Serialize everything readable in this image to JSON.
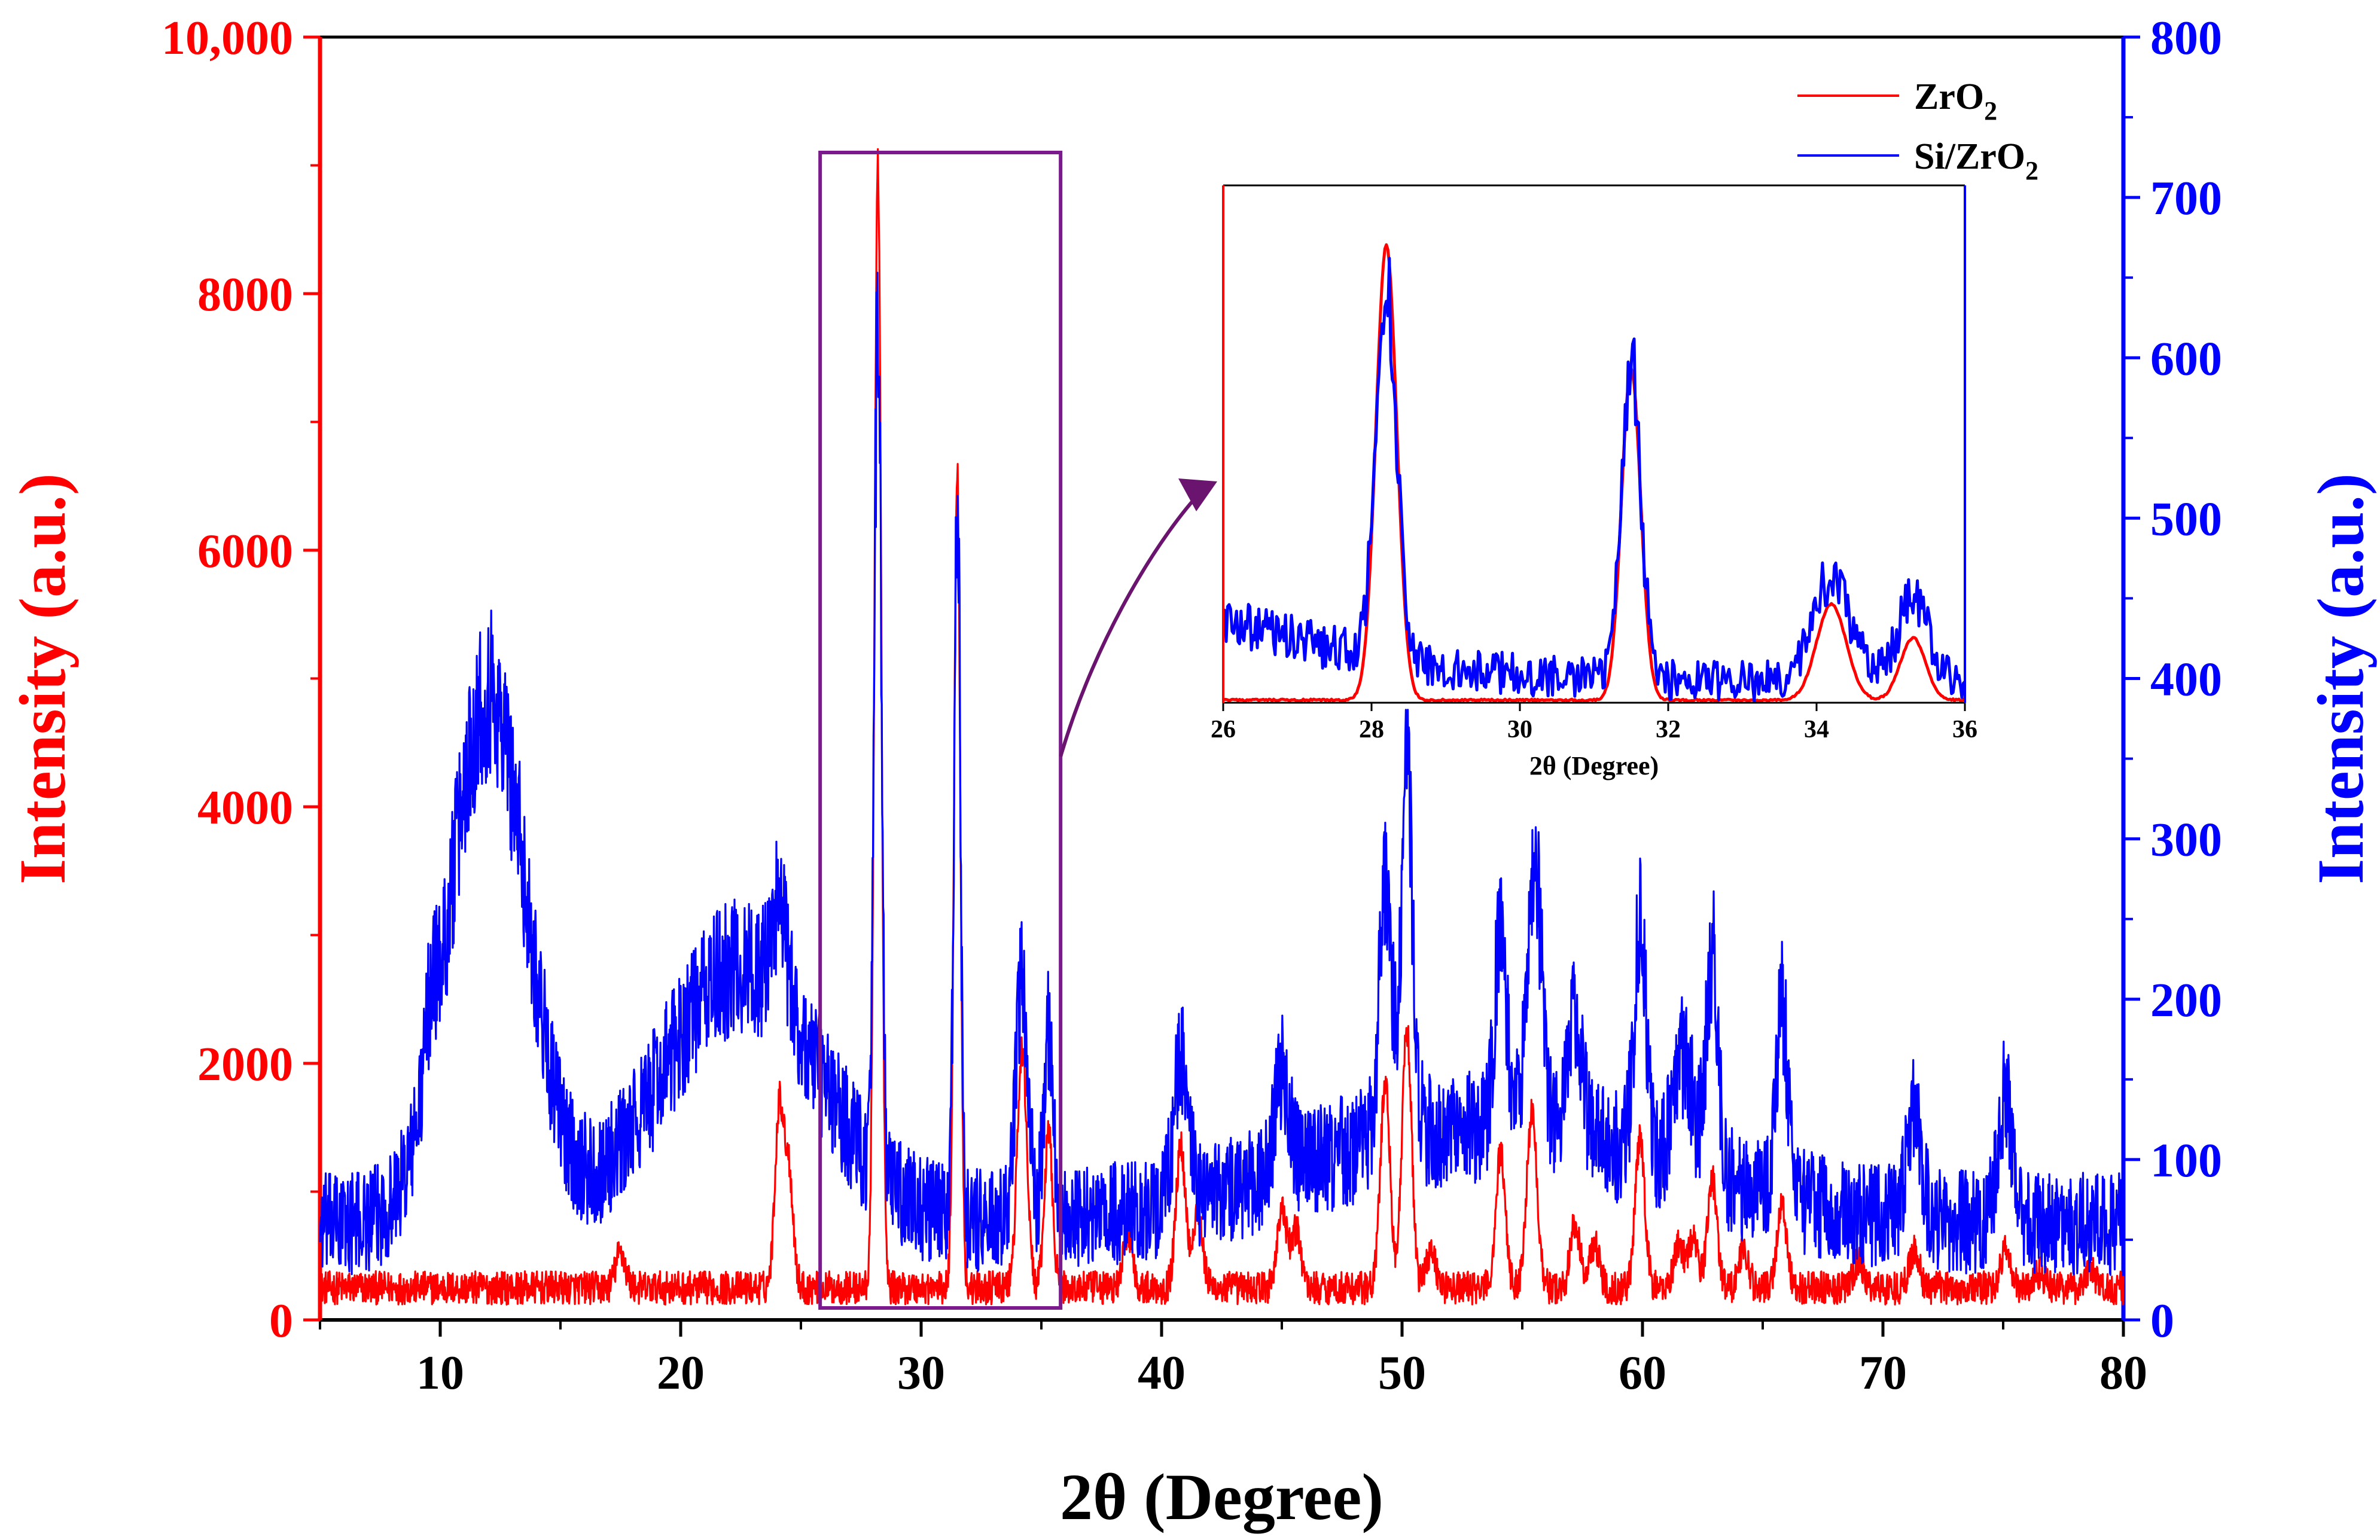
{
  "chart_data": {
    "type": "line",
    "title": "",
    "xlabel": "2θ (Degree)",
    "ylabel_left": "Intensity (a.u.)",
    "ylabel_right": "Intensity (a.u.)",
    "xlim": [
      5,
      80
    ],
    "ylim_left": [
      0,
      10000
    ],
    "ylim_right": [
      0,
      800
    ],
    "x_ticks": [
      "10",
      "20",
      "30",
      "40",
      "50",
      "60",
      "70",
      "80"
    ],
    "y_left_ticks": [
      "0",
      "2000",
      "4000",
      "6000",
      "8000",
      "10,000"
    ],
    "y_right_ticks": [
      "0",
      "100",
      "200",
      "300",
      "400",
      "500",
      "600",
      "700",
      "800"
    ],
    "colors": {
      "left_axis": "#ff0000",
      "right_axis": "#0000ff",
      "zoom_box": "#7b1a8c",
      "arrow": "#6a1470"
    },
    "legend": {
      "position": "top-right",
      "entries": [
        {
          "name": "ZrO",
          "sub": "2",
          "color": "#ff0000"
        },
        {
          "name": "Si/ZrO",
          "sub": "2",
          "color": "#0000ff"
        }
      ]
    },
    "series": [
      {
        "name": "ZrO2",
        "axis": "left",
        "color": "#ff0000",
        "baseline": 250,
        "noise": 130,
        "peaks": [
          [
            17.5,
            280,
            0.2
          ],
          [
            24.1,
            1400,
            0.18
          ],
          [
            24.5,
            900,
            0.18
          ],
          [
            28.2,
            8800,
            0.14
          ],
          [
            31.5,
            6400,
            0.13
          ],
          [
            34.2,
            1850,
            0.2
          ],
          [
            35.3,
            1200,
            0.17
          ],
          [
            38.6,
            450,
            0.18
          ],
          [
            40.8,
            1100,
            0.2
          ],
          [
            41.5,
            600,
            0.2
          ],
          [
            45.0,
            600,
            0.2
          ],
          [
            45.6,
            450,
            0.2
          ],
          [
            49.3,
            1600,
            0.2
          ],
          [
            50.2,
            2000,
            0.2
          ],
          [
            51.2,
            300,
            0.2
          ],
          [
            54.1,
            1050,
            0.2
          ],
          [
            55.4,
            1350,
            0.22
          ],
          [
            57.2,
            500,
            0.2
          ],
          [
            58.0,
            350,
            0.2
          ],
          [
            59.9,
            1150,
            0.2
          ],
          [
            61.5,
            350,
            0.2
          ],
          [
            62.1,
            380,
            0.2
          ],
          [
            62.9,
            850,
            0.2
          ],
          [
            64.2,
            300,
            0.2
          ],
          [
            65.8,
            650,
            0.2
          ],
          [
            69.0,
            200,
            0.2
          ],
          [
            71.3,
            300,
            0.2
          ],
          [
            75.1,
            300,
            0.2
          ],
          [
            76.5,
            120,
            0.2
          ],
          [
            78.6,
            150,
            0.2
          ]
        ]
      },
      {
        "name": "Si/ZrO2",
        "axis": "right",
        "color": "#0000ff",
        "baseline": 60,
        "noise": 28,
        "humps": [
          [
            12.0,
            330,
            1.6
          ],
          [
            22.5,
            160,
            3.2
          ],
          [
            49.9,
            40,
            6
          ],
          [
            58,
            35,
            6
          ]
        ],
        "peaks": [
          [
            9.6,
            40,
            0.25
          ],
          [
            24.1,
            60,
            0.3
          ],
          [
            28.2,
            530,
            0.14
          ],
          [
            31.5,
            450,
            0.13
          ],
          [
            34.2,
            150,
            0.25
          ],
          [
            35.3,
            120,
            0.2
          ],
          [
            40.8,
            90,
            0.3
          ],
          [
            45.0,
            60,
            0.3
          ],
          [
            49.3,
            160,
            0.25
          ],
          [
            50.2,
            220,
            0.25
          ],
          [
            54.1,
            120,
            0.25
          ],
          [
            55.5,
            170,
            0.3
          ],
          [
            57.2,
            70,
            0.3
          ],
          [
            59.9,
            140,
            0.25
          ],
          [
            61.7,
            70,
            0.4
          ],
          [
            62.9,
            140,
            0.25
          ],
          [
            65.8,
            120,
            0.25
          ],
          [
            71.3,
            70,
            0.3
          ],
          [
            75.1,
            80,
            0.3
          ]
        ]
      }
    ],
    "inset": {
      "xlim": [
        26,
        36
      ],
      "x_ticks": [
        "26",
        "28",
        "30",
        "32",
        "34",
        "36"
      ],
      "xlabel": "2θ (Degree)",
      "zoom_range": [
        25.8,
        35.8
      ]
    }
  }
}
